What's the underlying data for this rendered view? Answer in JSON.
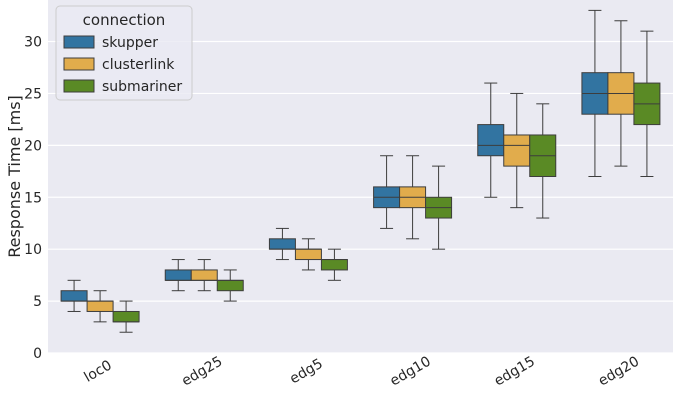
{
  "chart_data": {
    "type": "box",
    "title": "",
    "xlabel": "",
    "ylabel": "Response Time [ms]",
    "ylim": [
      0,
      34
    ],
    "yticks": [
      0,
      5,
      10,
      15,
      20,
      25,
      30
    ],
    "grid": true,
    "legend": {
      "title": "connection",
      "placement": "top-left"
    },
    "categories": [
      "loc0",
      "edg25",
      "edg5",
      "edg10",
      "edg15",
      "edg20"
    ],
    "series": [
      {
        "name": "skupper",
        "color": "#3274a1",
        "boxes": [
          {
            "whislo": 4,
            "q1": 5,
            "med": 5,
            "q3": 6,
            "whishi": 7
          },
          {
            "whislo": 6,
            "q1": 7,
            "med": 7,
            "q3": 8,
            "whishi": 9
          },
          {
            "whislo": 9,
            "q1": 10,
            "med": 10,
            "q3": 11,
            "whishi": 12
          },
          {
            "whislo": 12,
            "q1": 14,
            "med": 15,
            "q3": 16,
            "whishi": 19
          },
          {
            "whislo": 15,
            "q1": 19,
            "med": 20,
            "q3": 22,
            "whishi": 26
          },
          {
            "whislo": 17,
            "q1": 23,
            "med": 25,
            "q3": 27,
            "whishi": 33
          }
        ]
      },
      {
        "name": "clusterlink",
        "color": "#e1ac4c",
        "boxes": [
          {
            "whislo": 3,
            "q1": 4,
            "med": 5,
            "q3": 5,
            "whishi": 6
          },
          {
            "whislo": 6,
            "q1": 7,
            "med": 7,
            "q3": 8,
            "whishi": 9
          },
          {
            "whislo": 8,
            "q1": 9,
            "med": 10,
            "q3": 10,
            "whishi": 11
          },
          {
            "whislo": 11,
            "q1": 14,
            "med": 15,
            "q3": 16,
            "whishi": 19
          },
          {
            "whislo": 14,
            "q1": 18,
            "med": 20,
            "q3": 21,
            "whishi": 25
          },
          {
            "whislo": 18,
            "q1": 23,
            "med": 25,
            "q3": 27,
            "whishi": 32
          }
        ]
      },
      {
        "name": "submariner",
        "color": "#5a8a25",
        "boxes": [
          {
            "whislo": 2,
            "q1": 3,
            "med": 3,
            "q3": 4,
            "whishi": 5
          },
          {
            "whislo": 5,
            "q1": 6,
            "med": 7,
            "q3": 7,
            "whishi": 8
          },
          {
            "whislo": 7,
            "q1": 8,
            "med": 9,
            "q3": 9,
            "whishi": 10
          },
          {
            "whislo": 10,
            "q1": 13,
            "med": 14,
            "q3": 15,
            "whishi": 18
          },
          {
            "whislo": 13,
            "q1": 17,
            "med": 19,
            "q3": 21,
            "whishi": 24
          },
          {
            "whislo": 17,
            "q1": 22,
            "med": 24,
            "q3": 26,
            "whishi": 31
          }
        ]
      }
    ]
  }
}
